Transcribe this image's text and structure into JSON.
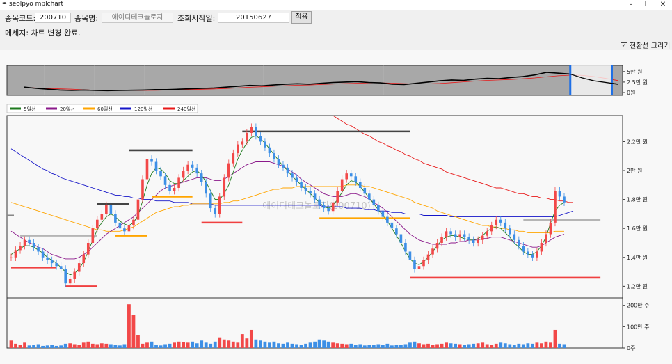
{
  "window": {
    "title": "seolpyo mplchart",
    "minimize": "–",
    "restore": "❐",
    "close": "✕"
  },
  "form": {
    "code_label": "종목코드:",
    "code_value": "200710",
    "name_label": "종목명:",
    "name_value": "에이디테크놀로지",
    "start_label": "조회시작일:",
    "start_value": "20150627",
    "apply_label": "적용",
    "message": "메세지: 차트 변경 완료.",
    "checkbox_label": "전환선 그리기",
    "checkbox_checked": true
  },
  "colors": {
    "up": "#f24848",
    "down": "#3d8fe6",
    "ma5": "#1e7a1e",
    "ma20": "#8b1a8b",
    "ma60": "#ffa500",
    "ma120": "#1515c8",
    "ma240": "#e81818"
  },
  "chart_data": [
    {
      "type": "line",
      "name": "overview",
      "ylim": [
        0,
        5.8
      ],
      "yticks": [
        {
          "v": 5,
          "label": "5만 원"
        },
        {
          "v": 2.5,
          "label": "2.5만 원"
        },
        {
          "v": 0,
          "label": "0원"
        }
      ],
      "x": [
        0,
        2,
        4,
        6,
        8,
        10,
        12,
        14,
        16,
        18,
        20,
        22,
        24,
        26,
        28,
        30,
        32,
        34,
        36,
        38,
        40,
        42,
        44,
        46,
        48,
        50,
        52,
        54,
        56,
        58,
        60,
        62,
        64,
        66,
        68,
        70,
        72,
        74,
        76,
        78,
        80,
        82,
        84,
        86,
        88,
        90,
        92,
        94,
        96,
        98,
        100
      ],
      "close": [
        1.3,
        1.0,
        0.8,
        0.6,
        0.5,
        0.6,
        0.5,
        0.45,
        0.5,
        0.55,
        0.6,
        0.7,
        0.7,
        0.8,
        0.9,
        1.0,
        1.1,
        1.3,
        1.5,
        1.7,
        1.6,
        1.8,
        2.0,
        2.1,
        2.0,
        2.2,
        2.4,
        2.5,
        2.6,
        2.4,
        2.3,
        2.0,
        1.9,
        2.2,
        2.5,
        2.8,
        3.0,
        2.9,
        3.2,
        3.4,
        3.3,
        3.6,
        3.8,
        4.2,
        4.8,
        4.6,
        4.4,
        3.5,
        2.8,
        2.4,
        2.0
      ],
      "selection_label": "",
      "selection_range": [
        92,
        99
      ]
    },
    {
      "type": "candlestick",
      "name": "price",
      "legend": [
        "5일선",
        "20일선",
        "60일선",
        "120일선",
        "240일선"
      ],
      "ylim": [
        1.12,
        2.38
      ],
      "yticks": [
        {
          "v": 2.2,
          "label": "2.2만 원"
        },
        {
          "v": 2.0,
          "label": "2만 원"
        },
        {
          "v": 1.8,
          "label": "1.8만 원"
        },
        {
          "v": 1.6,
          "label": "1.6만 원"
        },
        {
          "v": 1.4,
          "label": "1.4만 원"
        },
        {
          "v": 1.2,
          "label": "1.2만 원"
        }
      ],
      "watermark": "에이디테크놀로지(200710)",
      "close": [
        1.4,
        1.45,
        1.48,
        1.52,
        1.5,
        1.47,
        1.44,
        1.4,
        1.38,
        1.36,
        1.34,
        1.32,
        1.22,
        1.25,
        1.3,
        1.36,
        1.42,
        1.5,
        1.6,
        1.66,
        1.7,
        1.76,
        1.7,
        1.64,
        1.6,
        1.58,
        1.62,
        1.66,
        1.8,
        1.94,
        2.08,
        2.06,
        2.0,
        1.96,
        1.9,
        1.86,
        1.88,
        1.95,
        2.0,
        2.04,
        2.02,
        1.98,
        1.92,
        1.84,
        1.74,
        1.7,
        1.82,
        1.95,
        2.05,
        2.12,
        2.18,
        2.2,
        2.26,
        2.3,
        2.24,
        2.2,
        2.16,
        2.12,
        2.08,
        2.04,
        2.02,
        1.98,
        1.95,
        1.92,
        1.88,
        1.86,
        1.84,
        1.8,
        1.76,
        1.74,
        1.72,
        1.78,
        1.86,
        1.94,
        1.98,
        1.96,
        1.92,
        1.88,
        1.84,
        1.8,
        1.76,
        1.72,
        1.68,
        1.64,
        1.6,
        1.56,
        1.5,
        1.44,
        1.38,
        1.32,
        1.34,
        1.38,
        1.42,
        1.46,
        1.5,
        1.54,
        1.58,
        1.56,
        1.54,
        1.56,
        1.54,
        1.52,
        1.5,
        1.52,
        1.55,
        1.58,
        1.62,
        1.66,
        1.64,
        1.6,
        1.56,
        1.52,
        1.48,
        1.44,
        1.42,
        1.4,
        1.44,
        1.5,
        1.56,
        1.64,
        1.86,
        1.82,
        1.78
      ],
      "ma5": [
        1.42,
        1.44,
        1.46,
        1.48,
        1.48,
        1.47,
        1.45,
        1.43,
        1.4,
        1.38,
        1.36,
        1.33,
        1.3,
        1.28,
        1.29,
        1.32,
        1.37,
        1.44,
        1.52,
        1.59,
        1.64,
        1.68,
        1.7,
        1.68,
        1.65,
        1.63,
        1.62,
        1.64,
        1.69,
        1.79,
        1.9,
        1.98,
        2.02,
        2.01,
        1.98,
        1.93,
        1.91,
        1.91,
        1.93,
        1.96,
        1.99,
        2.0,
        1.97,
        1.92,
        1.86,
        1.8,
        1.8,
        1.84,
        1.9,
        1.99,
        2.08,
        2.14,
        2.19,
        2.23,
        2.24,
        2.22,
        2.19,
        2.15,
        2.11,
        2.07,
        2.03,
        2.0,
        1.96,
        1.93,
        1.9,
        1.87,
        1.84,
        1.81,
        1.78,
        1.75,
        1.74,
        1.76,
        1.8,
        1.85,
        1.9,
        1.93,
        1.92,
        1.89,
        1.85,
        1.81,
        1.77,
        1.73,
        1.69,
        1.65,
        1.6,
        1.55,
        1.5,
        1.44,
        1.39,
        1.36,
        1.35,
        1.37,
        1.4,
        1.44,
        1.48,
        1.52,
        1.54,
        1.55,
        1.55,
        1.54,
        1.53,
        1.52,
        1.52,
        1.53,
        1.55,
        1.58,
        1.6,
        1.61,
        1.6,
        1.57,
        1.54,
        1.5,
        1.47,
        1.44,
        1.42,
        1.42,
        1.44,
        1.48,
        1.54,
        1.64,
        1.72,
        1.76,
        1.78
      ],
      "ma20": [
        1.58,
        1.56,
        1.54,
        1.52,
        1.5,
        1.49,
        1.47,
        1.46,
        1.44,
        1.42,
        1.41,
        1.4,
        1.39,
        1.39,
        1.39,
        1.4,
        1.42,
        1.44,
        1.47,
        1.5,
        1.53,
        1.56,
        1.58,
        1.6,
        1.62,
        1.64,
        1.66,
        1.68,
        1.71,
        1.74,
        1.77,
        1.8,
        1.83,
        1.86,
        1.88,
        1.89,
        1.9,
        1.91,
        1.92,
        1.93,
        1.94,
        1.95,
        1.95,
        1.95,
        1.94,
        1.93,
        1.93,
        1.94,
        1.96,
        1.98,
        2.0,
        2.02,
        2.04,
        2.05,
        2.06,
        2.06,
        2.06,
        2.06,
        2.05,
        2.04,
        2.03,
        2.01,
        1.99,
        1.97,
        1.94,
        1.92,
        1.9,
        1.88,
        1.86,
        1.84,
        1.83,
        1.82,
        1.82,
        1.82,
        1.83,
        1.84,
        1.84,
        1.83,
        1.82,
        1.8,
        1.78,
        1.76,
        1.74,
        1.71,
        1.68,
        1.65,
        1.62,
        1.59,
        1.56,
        1.54,
        1.52,
        1.51,
        1.5,
        1.49,
        1.49,
        1.49,
        1.49,
        1.5,
        1.5,
        1.51,
        1.51,
        1.52,
        1.52,
        1.52,
        1.53,
        1.53,
        1.54,
        1.54,
        1.54,
        1.53,
        1.52,
        1.51,
        1.5,
        1.49,
        1.48,
        1.47,
        1.47,
        1.48,
        1.5,
        1.52,
        1.54,
        1.55,
        1.56
      ],
      "ma60": [
        1.78,
        1.77,
        1.76,
        1.75,
        1.74,
        1.73,
        1.72,
        1.71,
        1.7,
        1.69,
        1.68,
        1.67,
        1.66,
        1.65,
        1.64,
        1.63,
        1.62,
        1.61,
        1.6,
        1.59,
        1.59,
        1.58,
        1.58,
        1.58,
        1.58,
        1.59,
        1.6,
        1.61,
        1.63,
        1.65,
        1.67,
        1.69,
        1.71,
        1.72,
        1.73,
        1.74,
        1.75,
        1.75,
        1.76,
        1.76,
        1.77,
        1.77,
        1.77,
        1.77,
        1.77,
        1.77,
        1.77,
        1.78,
        1.78,
        1.79,
        1.79,
        1.8,
        1.81,
        1.82,
        1.83,
        1.84,
        1.85,
        1.86,
        1.87,
        1.87,
        1.88,
        1.88,
        1.88,
        1.89,
        1.89,
        1.89,
        1.89,
        1.89,
        1.89,
        1.89,
        1.89,
        1.89,
        1.89,
        1.89,
        1.9,
        1.9,
        1.9,
        1.9,
        1.89,
        1.89,
        1.88,
        1.87,
        1.86,
        1.85,
        1.84,
        1.83,
        1.82,
        1.81,
        1.8,
        1.78,
        1.77,
        1.76,
        1.75,
        1.74,
        1.72,
        1.71,
        1.7,
        1.69,
        1.68,
        1.67,
        1.66,
        1.65,
        1.64,
        1.63,
        1.62,
        1.62,
        1.61,
        1.61,
        1.6,
        1.6,
        1.59,
        1.59,
        1.58,
        1.58,
        1.57,
        1.57,
        1.57,
        1.57,
        1.57,
        1.57,
        1.58,
        1.58,
        1.58
      ],
      "ma120": [
        2.15,
        2.13,
        2.11,
        2.09,
        2.07,
        2.05,
        2.03,
        2.01,
        2.0,
        1.98,
        1.97,
        1.95,
        1.94,
        1.93,
        1.92,
        1.91,
        1.9,
        1.89,
        1.88,
        1.87,
        1.86,
        1.85,
        1.84,
        1.83,
        1.83,
        1.82,
        1.82,
        1.81,
        1.81,
        1.8,
        1.8,
        1.8,
        1.79,
        1.79,
        1.79,
        1.79,
        1.78,
        1.78,
        1.78,
        1.78,
        1.77,
        1.77,
        1.77,
        1.77,
        1.77,
        1.76,
        1.76,
        1.76,
        1.76,
        1.76,
        1.76,
        1.76,
        1.76,
        1.76,
        1.76,
        1.76,
        1.76,
        1.76,
        1.76,
        1.76,
        1.76,
        1.76,
        1.76,
        1.76,
        1.76,
        1.76,
        1.76,
        1.76,
        1.76,
        1.75,
        1.75,
        1.75,
        1.75,
        1.75,
        1.74,
        1.74,
        1.74,
        1.74,
        1.73,
        1.73,
        1.73,
        1.72,
        1.72,
        1.72,
        1.71,
        1.71,
        1.71,
        1.7,
        1.7,
        1.7,
        1.7,
        1.69,
        1.69,
        1.69,
        1.69,
        1.69,
        1.69,
        1.68,
        1.68,
        1.68,
        1.68,
        1.68,
        1.68,
        1.68,
        1.68,
        1.68,
        1.68,
        1.68,
        1.68,
        1.68,
        1.68,
        1.68,
        1.68,
        1.68,
        1.68,
        1.68,
        1.68,
        1.68,
        1.68,
        1.68,
        1.68,
        1.69,
        1.7,
        1.71,
        1.72
      ],
      "ma240": [
        null,
        null,
        null,
        null,
        null,
        null,
        null,
        null,
        null,
        null,
        null,
        null,
        null,
        null,
        null,
        null,
        null,
        null,
        null,
        null,
        null,
        null,
        null,
        null,
        null,
        null,
        null,
        null,
        null,
        null,
        null,
        null,
        null,
        null,
        null,
        null,
        null,
        null,
        null,
        null,
        null,
        null,
        null,
        null,
        null,
        null,
        null,
        null,
        null,
        null,
        null,
        null,
        null,
        null,
        null,
        null,
        null,
        null,
        null,
        null,
        null,
        null,
        null,
        null,
        null,
        null,
        null,
        null,
        null,
        null,
        null,
        2.38,
        2.36,
        2.34,
        2.32,
        2.31,
        2.29,
        2.27,
        2.25,
        2.24,
        2.22,
        2.2,
        2.19,
        2.17,
        2.16,
        2.14,
        2.13,
        2.11,
        2.1,
        2.08,
        2.07,
        2.05,
        2.04,
        2.03,
        2.02,
        2.01,
        1.99,
        1.98,
        1.97,
        1.96,
        1.95,
        1.94,
        1.93,
        1.92,
        1.91,
        1.9,
        1.89,
        1.88,
        1.88,
        1.87,
        1.86,
        1.85,
        1.84,
        1.84,
        1.83,
        1.82,
        1.82,
        1.81,
        1.81,
        1.8,
        1.8,
        1.79,
        1.79,
        1.78,
        1.78
      ],
      "hlines": [
        {
          "y": 1.33,
          "x0": 0,
          "x1": 10,
          "color": "#f04040"
        },
        {
          "y": 1.55,
          "x0": 2,
          "x1": 19,
          "color": "#b5b5b5"
        },
        {
          "y": 1.2,
          "x0": 12,
          "x1": 19,
          "color": "#f04040"
        },
        {
          "y": 1.77,
          "x0": 19,
          "x1": 26,
          "color": "#444444"
        },
        {
          "y": 1.55,
          "x0": 23,
          "x1": 30,
          "color": "#ffa500"
        },
        {
          "y": 2.14,
          "x0": 26,
          "x1": 40,
          "color": "#444444"
        },
        {
          "y": 1.82,
          "x0": 31,
          "x1": 40,
          "color": "#ffa500"
        },
        {
          "y": 1.64,
          "x0": 42,
          "x1": 51,
          "color": "#f04040"
        },
        {
          "y": 2.27,
          "x0": 51,
          "x1": 88,
          "color": "#444444"
        },
        {
          "y": 1.67,
          "x0": 68,
          "x1": 88,
          "color": "#ffa500"
        },
        {
          "y": 1.26,
          "x0": 88,
          "x1": 130,
          "color": "#f04040"
        },
        {
          "y": 1.66,
          "x0": 113,
          "x1": 130,
          "color": "#b5b5b5"
        }
      ]
    },
    {
      "type": "bar",
      "name": "volume",
      "ylim": [
        0,
        2.35
      ],
      "yticks": [
        {
          "v": 2,
          "label": "200만 주"
        },
        {
          "v": 1,
          "label": "100만 주"
        },
        {
          "v": 0,
          "label": "0주"
        }
      ],
      "values": [
        0.35,
        0.2,
        0.15,
        0.25,
        0.12,
        0.15,
        0.18,
        0.1,
        0.12,
        0.15,
        0.1,
        0.12,
        0.2,
        0.22,
        0.18,
        0.15,
        0.25,
        0.3,
        0.2,
        0.18,
        0.22,
        0.2,
        0.18,
        0.15,
        0.12,
        0.18,
        2.05,
        1.55,
        0.6,
        0.2,
        0.25,
        0.3,
        0.15,
        0.12,
        0.18,
        0.2,
        0.25,
        0.3,
        0.28,
        0.25,
        0.3,
        0.22,
        0.35,
        0.25,
        0.2,
        0.3,
        0.5,
        0.4,
        0.35,
        0.3,
        0.25,
        0.65,
        0.45,
        0.85,
        0.4,
        0.35,
        0.3,
        0.25,
        0.3,
        0.22,
        0.2,
        0.25,
        0.2,
        0.18,
        0.15,
        0.2,
        0.25,
        0.3,
        0.4,
        0.35,
        0.3,
        0.25,
        0.22,
        0.2,
        0.18,
        0.2,
        0.15,
        0.18,
        0.12,
        0.15,
        0.15,
        0.18,
        0.15,
        0.2,
        0.12,
        0.15,
        0.15,
        0.18,
        0.25,
        0.3,
        0.22,
        0.18,
        0.2,
        0.15,
        0.18,
        0.2,
        0.25,
        0.22,
        0.2,
        0.18,
        0.15,
        0.18,
        0.2,
        0.22,
        0.25,
        0.18,
        0.15,
        0.2,
        0.25,
        0.22,
        0.18,
        0.15,
        0.2,
        0.18,
        0.22,
        0.2,
        0.25,
        0.22,
        0.3,
        0.25,
        0.85,
        0.2,
        0.18
      ]
    }
  ]
}
